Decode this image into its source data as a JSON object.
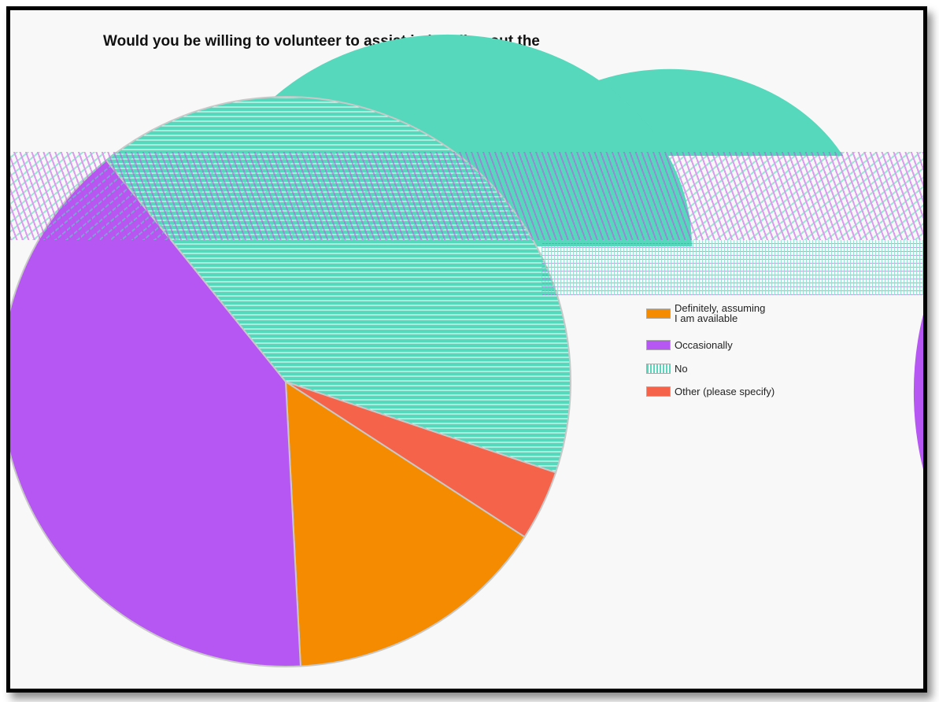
{
  "chart_data": {
    "type": "pie",
    "title": "Would you be willing to volunteer to assist in handing out the",
    "categories": [
      "Definitely, assuming\nI am available",
      "Occasionally",
      "No",
      "Other (please specify)"
    ],
    "values": [
      15,
      40,
      41,
      4
    ],
    "unit": "%",
    "colors": [
      "#f48b00",
      "#b657f4",
      "#55d8bb",
      "#f4634a"
    ],
    "legend_position": "right",
    "legend_swatch_styles": [
      "solid",
      "solid",
      "striped",
      "solid"
    ]
  }
}
